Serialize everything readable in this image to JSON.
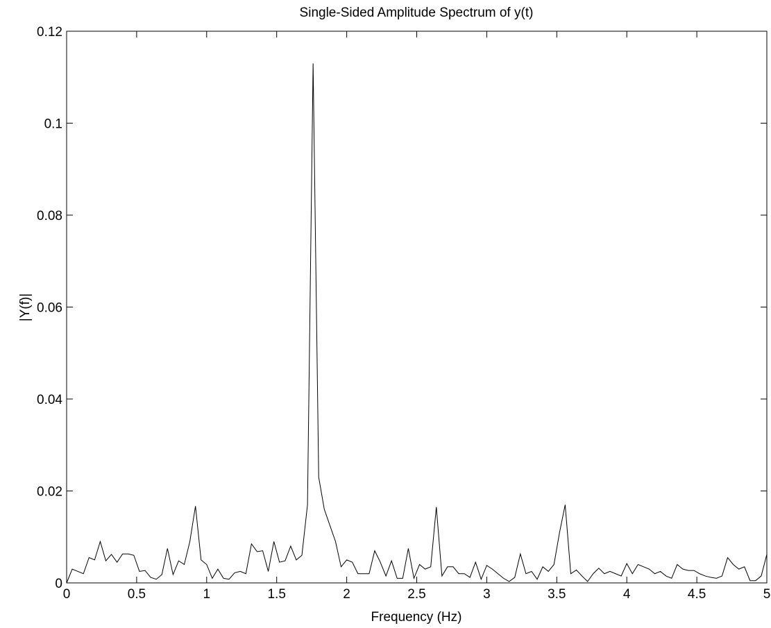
{
  "chart_data": {
    "type": "line",
    "title": "Single-Sided Amplitude Spectrum of y(t)",
    "x_label": "Frequency (Hz)",
    "y_label": "|Y(f)|",
    "x": [
      0,
      0.04,
      0.08,
      0.12,
      0.16,
      0.2,
      0.24,
      0.28,
      0.32,
      0.36,
      0.4,
      0.44,
      0.48,
      0.52,
      0.56,
      0.6,
      0.64,
      0.68,
      0.72,
      0.76,
      0.8,
      0.84,
      0.88,
      0.92,
      0.96,
      1,
      1.04,
      1.08,
      1.12,
      1.16,
      1.2,
      1.24,
      1.28,
      1.32,
      1.36,
      1.4,
      1.44,
      1.48,
      1.52,
      1.56,
      1.6,
      1.64,
      1.68,
      1.72,
      1.76,
      1.8,
      1.84,
      1.88,
      1.92,
      1.96,
      2,
      2.04,
      2.08,
      2.12,
      2.16,
      2.2,
      2.24,
      2.28,
      2.32,
      2.36,
      2.4,
      2.44,
      2.48,
      2.52,
      2.56,
      2.6,
      2.64,
      2.68,
      2.72,
      2.76,
      2.8,
      2.84,
      2.88,
      2.92,
      2.96,
      3,
      3.04,
      3.08,
      3.12,
      3.16,
      3.2,
      3.24,
      3.28,
      3.32,
      3.36,
      3.4,
      3.44,
      3.48,
      3.52,
      3.56,
      3.6,
      3.64,
      3.68,
      3.72,
      3.76,
      3.8,
      3.84,
      3.88,
      3.92,
      3.96,
      4,
      4.04,
      4.08,
      4.12,
      4.16,
      4.2,
      4.24,
      4.28,
      4.32,
      4.36,
      4.4,
      4.44,
      4.48,
      4.52,
      4.56,
      4.6,
      4.64,
      4.68,
      4.72,
      4.76,
      4.8,
      4.84,
      4.88,
      4.92,
      4.96,
      5
    ],
    "series": [
      {
        "color": "#000000",
        "values": [
          0,
          0.003,
          0.0025,
          0.002,
          0.0055,
          0.005,
          0.009,
          0.0048,
          0.0062,
          0.0045,
          0.0063,
          0.0063,
          0.006,
          0.0025,
          0.0027,
          0.0012,
          0.0008,
          0.0018,
          0.0075,
          0.0018,
          0.0048,
          0.004,
          0.009,
          0.0167,
          0.005,
          0.004,
          0.001,
          0.003,
          0.001,
          0.0008,
          0.0022,
          0.0025,
          0.002,
          0.0085,
          0.0068,
          0.007,
          0.0025,
          0.009,
          0.0045,
          0.0048,
          0.008,
          0.005,
          0.006,
          0.017,
          0.113,
          0.023,
          0.016,
          0.0125,
          0.009,
          0.0035,
          0.005,
          0.0045,
          0.002,
          0.002,
          0.002,
          0.007,
          0.0045,
          0.0015,
          0.0048,
          0.001,
          0.001,
          0.0075,
          0.001,
          0.004,
          0.003,
          0.0035,
          0.0165,
          0.0015,
          0.0035,
          0.0035,
          0.002,
          0.002,
          0.0012,
          0.0045,
          0.0008,
          0.0038,
          0.003,
          0.002,
          0.001,
          0.0003,
          0.0012,
          0.0063,
          0.002,
          0.0025,
          0.0008,
          0.0035,
          0.0025,
          0.004,
          0.011,
          0.017,
          0.002,
          0.0028,
          0.0015,
          0.0003,
          0.002,
          0.0032,
          0.002,
          0.0025,
          0.002,
          0.0015,
          0.0042,
          0.002,
          0.004,
          0.0035,
          0.003,
          0.002,
          0.0025,
          0.0015,
          0.001,
          0.004,
          0.003,
          0.0027,
          0.0027,
          0.002,
          0.0015,
          0.0012,
          0.001,
          0.0015,
          0.0055,
          0.004,
          0.003,
          0.0035,
          0.0005,
          0.0005,
          0.0015,
          0.0062
        ]
      }
    ],
    "xlim": [
      0,
      5
    ],
    "xticks": [
      0,
      0.5,
      1,
      1.5,
      2,
      2.5,
      3,
      3.5,
      4,
      4.5,
      5
    ],
    "ylim": [
      0,
      0.12
    ],
    "yticks": [
      0,
      0.02,
      0.04,
      0.06,
      0.08,
      0.1,
      0.12
    ],
    "grid": false
  }
}
